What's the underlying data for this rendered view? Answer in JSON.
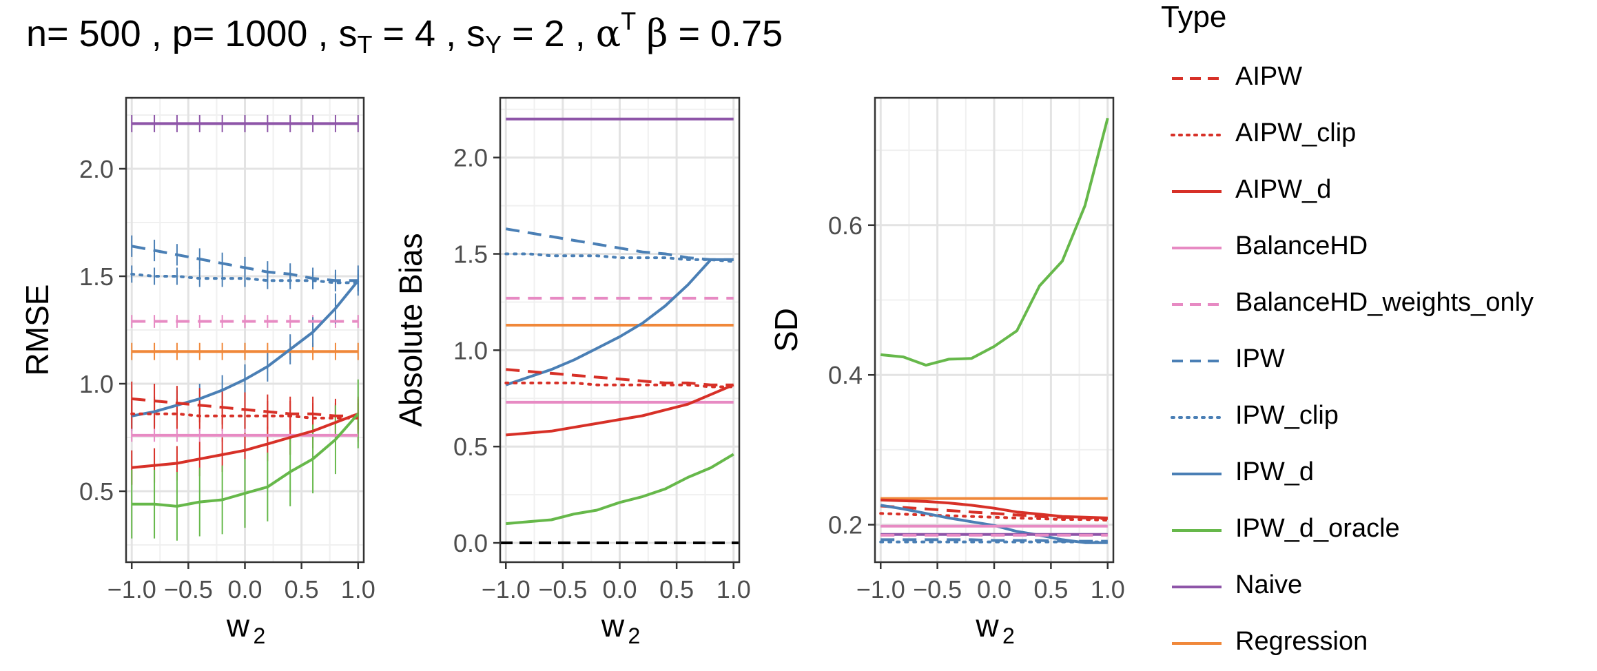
{
  "title": {
    "n": "n= 500",
    "p": "p= 1000",
    "sT_base": "s",
    "sT_sub": "T",
    "sT_val": "= 4",
    "sY_base": "s",
    "sY_sub": "Y",
    "sY_val": "= 2",
    "ab_alpha": "α",
    "ab_sup": "T",
    "ab_beta": "β",
    "ab_val": "= 0.75",
    "sep": ","
  },
  "legend": {
    "title": "Type",
    "items": [
      {
        "label": "AIPW",
        "color": "#d73027",
        "dash": "dashed"
      },
      {
        "label": "AIPW_clip",
        "color": "#d73027",
        "dash": "dotted"
      },
      {
        "label": "AIPW_d",
        "color": "#d73027",
        "dash": "solid"
      },
      {
        "label": "BalanceHD",
        "color": "#e78ac3",
        "dash": "solid"
      },
      {
        "label": "BalanceHD_weights_only",
        "color": "#e78ac3",
        "dash": "dashed"
      },
      {
        "label": "IPW",
        "color": "#4a7fb5",
        "dash": "dashed"
      },
      {
        "label": "IPW_clip",
        "color": "#4a7fb5",
        "dash": "dotted"
      },
      {
        "label": "IPW_d",
        "color": "#4a7fb5",
        "dash": "solid"
      },
      {
        "label": "IPW_d_oracle",
        "color": "#66b84a",
        "dash": "solid"
      },
      {
        "label": "Naive",
        "color": "#8e55a8",
        "dash": "solid"
      },
      {
        "label": "Regression",
        "color": "#f0883a",
        "dash": "solid"
      }
    ]
  },
  "chart_data": [
    {
      "type": "line",
      "id": "rmse",
      "xlabel_base": "w",
      "xlabel_sub": "2",
      "ylabel": "RMSE",
      "xlim": [
        -1.05,
        1.05
      ],
      "ylim": [
        0.17,
        2.33
      ],
      "xticks": [
        -1.0,
        -0.5,
        0.0,
        0.5,
        1.0
      ],
      "xtick_labels": [
        "−1.0",
        "−0.5",
        "0.0",
        "0.5",
        "1.0"
      ],
      "yticks": [
        0.5,
        1.0,
        1.5,
        2.0
      ],
      "ytick_labels": [
        "0.5",
        "1.0",
        "1.5",
        "2.0"
      ],
      "x": [
        -1.0,
        -0.8,
        -0.6,
        -0.4,
        -0.2,
        0.0,
        0.2,
        0.4,
        0.6,
        0.8,
        1.0
      ],
      "series": [
        {
          "name": "Naive",
          "values": [
            2.21,
            2.21,
            2.21,
            2.21,
            2.21,
            2.21,
            2.21,
            2.21,
            2.21,
            2.21,
            2.21
          ],
          "err": 0.04
        },
        {
          "name": "IPW",
          "values": [
            1.64,
            1.62,
            1.6,
            1.58,
            1.56,
            1.54,
            1.52,
            1.51,
            1.49,
            1.48,
            1.48
          ],
          "err": 0.05
        },
        {
          "name": "IPW_clip",
          "values": [
            1.51,
            1.5,
            1.5,
            1.49,
            1.49,
            1.49,
            1.48,
            1.48,
            1.48,
            1.47,
            1.47
          ],
          "err": 0.04
        },
        {
          "name": "BalanceHD_weights_only",
          "values": [
            1.29,
            1.29,
            1.29,
            1.29,
            1.29,
            1.29,
            1.29,
            1.29,
            1.29,
            1.29,
            1.29
          ],
          "err": 0.03
        },
        {
          "name": "Regression",
          "values": [
            1.15,
            1.15,
            1.15,
            1.15,
            1.15,
            1.15,
            1.15,
            1.15,
            1.15,
            1.15,
            1.15
          ],
          "err": 0.04
        },
        {
          "name": "IPW_d",
          "values": [
            0.85,
            0.87,
            0.9,
            0.93,
            0.97,
            1.02,
            1.08,
            1.16,
            1.24,
            1.35,
            1.48
          ],
          "err": 0.07
        },
        {
          "name": "AIPW",
          "values": [
            0.93,
            0.92,
            0.91,
            0.9,
            0.89,
            0.88,
            0.87,
            0.86,
            0.86,
            0.85,
            0.85
          ],
          "err": 0.08
        },
        {
          "name": "AIPW_clip",
          "values": [
            0.86,
            0.86,
            0.86,
            0.85,
            0.85,
            0.85,
            0.85,
            0.85,
            0.84,
            0.84,
            0.84
          ],
          "err": 0.07
        },
        {
          "name": "BalanceHD",
          "values": [
            0.76,
            0.76,
            0.76,
            0.76,
            0.76,
            0.76,
            0.76,
            0.76,
            0.76,
            0.76,
            0.76
          ],
          "err": 0.03
        },
        {
          "name": "AIPW_d",
          "values": [
            0.61,
            0.62,
            0.63,
            0.65,
            0.67,
            0.69,
            0.72,
            0.75,
            0.78,
            0.82,
            0.86
          ],
          "err": 0.08
        },
        {
          "name": "IPW_d_oracle",
          "values": [
            0.44,
            0.44,
            0.43,
            0.45,
            0.46,
            0.49,
            0.52,
            0.59,
            0.65,
            0.74,
            0.86
          ],
          "err": 0.16
        }
      ]
    },
    {
      "type": "line",
      "id": "bias",
      "xlabel_base": "w",
      "xlabel_sub": "2",
      "ylabel": "Absolute Bias",
      "xlim": [
        -1.05,
        1.05
      ],
      "ylim": [
        -0.1,
        2.31
      ],
      "xticks": [
        -1.0,
        -0.5,
        0.0,
        0.5,
        1.0
      ],
      "xtick_labels": [
        "−1.0",
        "−0.5",
        "0.0",
        "0.5",
        "1.0"
      ],
      "yticks": [
        0.0,
        0.5,
        1.0,
        1.5,
        2.0
      ],
      "ytick_labels": [
        "0.0",
        "0.5",
        "1.0",
        "1.5",
        "2.0"
      ],
      "zero_line": 0.0,
      "x": [
        -1.0,
        -0.8,
        -0.6,
        -0.4,
        -0.2,
        0.0,
        0.2,
        0.4,
        0.6,
        0.8,
        1.0
      ],
      "series": [
        {
          "name": "Naive",
          "values": [
            2.2,
            2.2,
            2.2,
            2.2,
            2.2,
            2.2,
            2.2,
            2.2,
            2.2,
            2.2,
            2.2
          ]
        },
        {
          "name": "IPW",
          "values": [
            1.63,
            1.61,
            1.59,
            1.57,
            1.55,
            1.53,
            1.51,
            1.5,
            1.48,
            1.47,
            1.47
          ]
        },
        {
          "name": "IPW_clip",
          "values": [
            1.5,
            1.5,
            1.49,
            1.49,
            1.49,
            1.48,
            1.48,
            1.48,
            1.47,
            1.47,
            1.46
          ]
        },
        {
          "name": "BalanceHD_weights_only",
          "values": [
            1.27,
            1.27,
            1.27,
            1.27,
            1.27,
            1.27,
            1.27,
            1.27,
            1.27,
            1.27,
            1.27
          ]
        },
        {
          "name": "Regression",
          "values": [
            1.13,
            1.13,
            1.13,
            1.13,
            1.13,
            1.13,
            1.13,
            1.13,
            1.13,
            1.13,
            1.13
          ]
        },
        {
          "name": "IPW_d",
          "values": [
            0.82,
            0.86,
            0.9,
            0.95,
            1.01,
            1.07,
            1.14,
            1.23,
            1.34,
            1.47,
            1.47
          ]
        },
        {
          "name": "AIPW",
          "values": [
            0.9,
            0.89,
            0.88,
            0.87,
            0.86,
            0.85,
            0.84,
            0.83,
            0.83,
            0.82,
            0.82
          ]
        },
        {
          "name": "AIPW_clip",
          "values": [
            0.83,
            0.83,
            0.83,
            0.83,
            0.82,
            0.82,
            0.82,
            0.82,
            0.82,
            0.81,
            0.81
          ]
        },
        {
          "name": "BalanceHD",
          "values": [
            0.73,
            0.73,
            0.73,
            0.73,
            0.73,
            0.73,
            0.73,
            0.73,
            0.73,
            0.73,
            0.73
          ]
        },
        {
          "name": "AIPW_d",
          "values": [
            0.56,
            0.57,
            0.58,
            0.6,
            0.62,
            0.64,
            0.66,
            0.69,
            0.72,
            0.77,
            0.82
          ]
        },
        {
          "name": "IPW_d_oracle",
          "values": [
            0.1,
            0.11,
            0.12,
            0.15,
            0.17,
            0.21,
            0.24,
            0.28,
            0.34,
            0.39,
            0.46
          ]
        }
      ]
    },
    {
      "type": "line",
      "id": "sd",
      "xlabel_base": "w",
      "xlabel_sub": "2",
      "ylabel": "SD",
      "xlim": [
        -1.05,
        1.05
      ],
      "ylim": [
        0.15,
        0.77
      ],
      "xticks": [
        -1.0,
        -0.5,
        0.0,
        0.5,
        1.0
      ],
      "xtick_labels": [
        "−1.0",
        "−0.5",
        "0.0",
        "0.5",
        "1.0"
      ],
      "yticks": [
        0.2,
        0.4,
        0.6
      ],
      "ytick_labels": [
        "0.2",
        "0.4",
        "0.6"
      ],
      "x": [
        -1.0,
        -0.8,
        -0.6,
        -0.4,
        -0.2,
        0.0,
        0.2,
        0.4,
        0.6,
        0.8,
        1.0
      ],
      "series": [
        {
          "name": "IPW_d_oracle",
          "values": [
            0.427,
            0.424,
            0.413,
            0.421,
            0.422,
            0.438,
            0.459,
            0.519,
            0.552,
            0.626,
            0.743
          ]
        },
        {
          "name": "Regression",
          "values": [
            0.235,
            0.235,
            0.235,
            0.235,
            0.235,
            0.235,
            0.235,
            0.235,
            0.235,
            0.235,
            0.235
          ]
        },
        {
          "name": "AIPW_d",
          "values": [
            0.233,
            0.232,
            0.231,
            0.229,
            0.226,
            0.222,
            0.217,
            0.214,
            0.211,
            0.21,
            0.209
          ]
        },
        {
          "name": "AIPW",
          "values": [
            0.225,
            0.223,
            0.221,
            0.219,
            0.217,
            0.215,
            0.213,
            0.211,
            0.21,
            0.209,
            0.208
          ]
        },
        {
          "name": "AIPW_clip",
          "values": [
            0.215,
            0.214,
            0.213,
            0.212,
            0.211,
            0.21,
            0.209,
            0.208,
            0.207,
            0.207,
            0.206
          ]
        },
        {
          "name": "IPW_d",
          "values": [
            0.226,
            0.221,
            0.215,
            0.209,
            0.204,
            0.199,
            0.191,
            0.186,
            0.18,
            0.176,
            0.176
          ]
        },
        {
          "name": "BalanceHD",
          "values": [
            0.198,
            0.198,
            0.198,
            0.198,
            0.198,
            0.198,
            0.198,
            0.198,
            0.198,
            0.198,
            0.198
          ]
        },
        {
          "name": "Naive",
          "values": [
            0.187,
            0.187,
            0.187,
            0.187,
            0.187,
            0.187,
            0.187,
            0.187,
            0.187,
            0.187,
            0.187
          ]
        },
        {
          "name": "BalanceHD_weights_only",
          "values": [
            0.186,
            0.186,
            0.186,
            0.186,
            0.186,
            0.186,
            0.186,
            0.186,
            0.186,
            0.186,
            0.186
          ]
        },
        {
          "name": "IPW",
          "values": [
            0.18,
            0.18,
            0.18,
            0.18,
            0.18,
            0.179,
            0.179,
            0.179,
            0.178,
            0.178,
            0.178
          ]
        },
        {
          "name": "IPW_clip",
          "values": [
            0.177,
            0.177,
            0.177,
            0.177,
            0.177,
            0.177,
            0.177,
            0.177,
            0.177,
            0.177,
            0.177
          ]
        }
      ]
    }
  ]
}
